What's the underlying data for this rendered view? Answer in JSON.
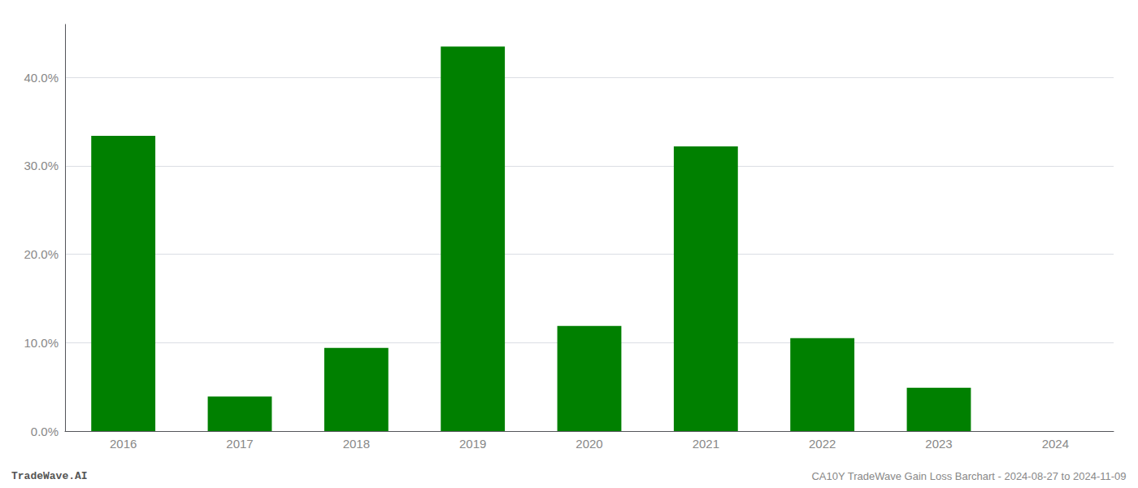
{
  "chart_data": {
    "type": "bar",
    "categories": [
      "2016",
      "2017",
      "2018",
      "2019",
      "2020",
      "2021",
      "2022",
      "2023",
      "2024"
    ],
    "values": [
      0.334,
      0.039,
      0.094,
      0.435,
      0.119,
      0.322,
      0.105,
      0.049,
      0.0
    ],
    "color": "#008000",
    "ylim": [
      0,
      0.46
    ],
    "yticks": [
      {
        "value": 0.0,
        "label": "0.0%"
      },
      {
        "value": 0.1,
        "label": "10.0%"
      },
      {
        "value": 0.2,
        "label": "20.0%"
      },
      {
        "value": 0.3,
        "label": "30.0%"
      },
      {
        "value": 0.4,
        "label": "40.0%"
      }
    ],
    "grid": true,
    "annotations": [
      "TradeWave.AI",
      "CA10Y TradeWave Gain Loss Barchart - 2024-08-27 to 2024-11-09"
    ]
  }
}
